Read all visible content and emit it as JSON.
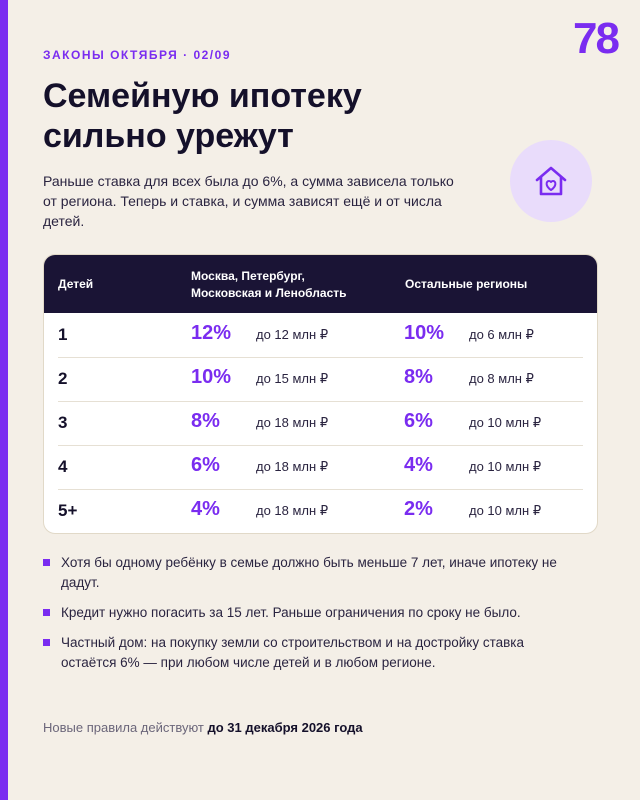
{
  "brand": {
    "logo": "78",
    "accent": "#7a2cf0"
  },
  "kicker": "ЗАКОНЫ ОКТЯБРЯ · 02/09",
  "title": "Семейную ипотеку сильно урежут",
  "lead": "Раньше ставка для всех была до 6%, а сумма зависела только от региона. Теперь и ставка, и сумма зависят ещё и от числа детей.",
  "badge_icon": "house-heart-icon",
  "table": {
    "headers": {
      "kids": "Детей",
      "region1": "Москва, Петербург, Московская и Ленобласть",
      "region2": "Остальные регионы"
    },
    "rows": [
      {
        "kids": "1",
        "rate1": "12%",
        "amount1": "до 12 млн ₽",
        "rate2": "10%",
        "amount2": "до 6 млн ₽"
      },
      {
        "kids": "2",
        "rate1": "10%",
        "amount1": "до 15 млн ₽",
        "rate2": "8%",
        "amount2": "до 8 млн ₽"
      },
      {
        "kids": "3",
        "rate1": "8%",
        "amount1": "до 18 млн ₽",
        "rate2": "6%",
        "amount2": "до 10 млн ₽"
      },
      {
        "kids": "4",
        "rate1": "6%",
        "amount1": "до 18 млн ₽",
        "rate2": "4%",
        "amount2": "до 10 млн ₽"
      },
      {
        "kids": "5+",
        "rate1": "4%",
        "amount1": "до 18 млн ₽",
        "rate2": "2%",
        "amount2": "до 10 млн ₽"
      }
    ]
  },
  "notes": [
    "Хотя бы одному ребёнку в семье должно быть меньше 7 лет, иначе ипотеку не дадут.",
    "Кредит нужно погасить за 15 лет. Раньше ограничения по сроку не было.",
    "Частный дом: на покупку земли со строительством и на достройку ставка остаётся 6% — при любом числе детей и в любом регионе."
  ],
  "footer": {
    "prefix": "Новые правила действуют",
    "deadline": "до 31 декабря 2026 года"
  }
}
